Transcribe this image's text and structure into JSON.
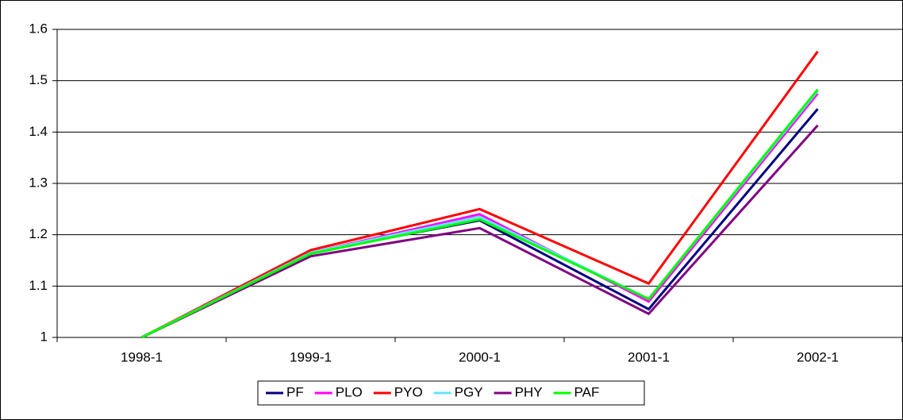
{
  "chart_data": {
    "type": "line",
    "categories": [
      "1998-1",
      "1999-1",
      "2000-1",
      "2001-1",
      "2002-1"
    ],
    "series": [
      {
        "name": "PF",
        "color": "#000080",
        "values": [
          1,
          1.165,
          1.228,
          1.055,
          1.445
        ]
      },
      {
        "name": "PLO",
        "color": "#ff00ff",
        "values": [
          1,
          1.165,
          1.24,
          1.07,
          1.475
        ]
      },
      {
        "name": "PYO",
        "color": "#ff0000",
        "values": [
          1,
          1.17,
          1.25,
          1.105,
          1.557
        ]
      },
      {
        "name": "PGY",
        "color": "#66e0ff",
        "values": [
          1,
          1.165,
          1.235,
          1.075,
          1.48
        ]
      },
      {
        "name": "PHY",
        "color": "#800080",
        "values": [
          1,
          1.158,
          1.213,
          1.046,
          1.413
        ]
      },
      {
        "name": "PAF",
        "color": "#00ff00",
        "values": [
          1,
          1.163,
          1.23,
          1.075,
          1.483
        ]
      }
    ],
    "ylim": [
      1,
      1.6
    ],
    "yticks": [
      1,
      1.1,
      1.2,
      1.3,
      1.4,
      1.5,
      1.6
    ],
    "grid": true,
    "legend": "bottom"
  }
}
